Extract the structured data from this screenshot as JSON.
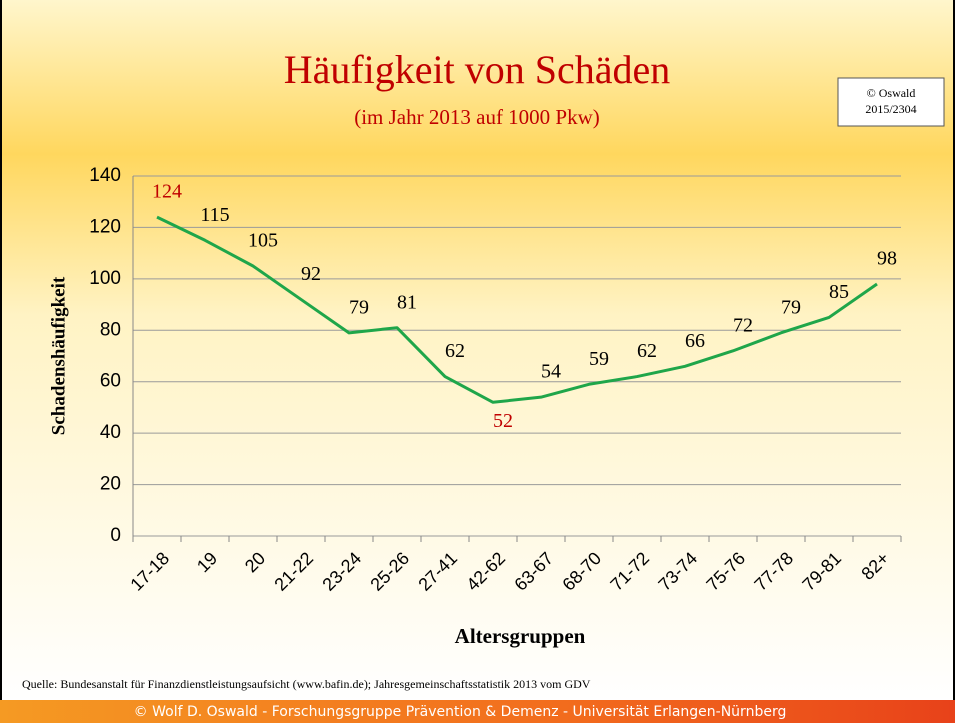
{
  "chart_data": {
    "type": "line",
    "title": "Häufigkeit von Schäden",
    "subtitle": "(im Jahr 2013 auf 1000 Pkw)",
    "copyright": [
      "© Oswald",
      "2015/2304"
    ],
    "x_label": "Altersgruppen",
    "y_label": "Schadenshäufigkeit",
    "source": "Quelle: Bundesanstalt für Finanzdienstleistungsaufsicht (www.bafin.de); Jahresgemeinschaftsstatistik 2013 vom GDV",
    "footer": "© Wolf  D. Oswald  - Forschungsgruppe Prävention & Demenz - Universität Erlangen-Nürnberg",
    "categories": [
      "17-18",
      "19",
      "20",
      "21-22",
      "23-24",
      "25-26",
      "27-41",
      "42-62",
      "63-67",
      "68-70",
      "71-72",
      "73-74",
      "75-76",
      "77-78",
      "79-81",
      "82+"
    ],
    "values": [
      124,
      115,
      105,
      92,
      79,
      81,
      62,
      52,
      54,
      59,
      62,
      66,
      72,
      79,
      85,
      98
    ],
    "color": "#1fa64a",
    "value_label_colors": [
      "#c00000",
      "#000000",
      "#000000",
      "#000000",
      "#000000",
      "#000000",
      "#000000",
      "#c00000",
      "#000000",
      "#000000",
      "#000000",
      "#000000",
      "#000000",
      "#000000",
      "#000000",
      "#000000"
    ],
    "ylim": [
      0,
      140
    ],
    "yticks": [
      0,
      20,
      40,
      60,
      80,
      100,
      120,
      140
    ],
    "grid": true
  }
}
